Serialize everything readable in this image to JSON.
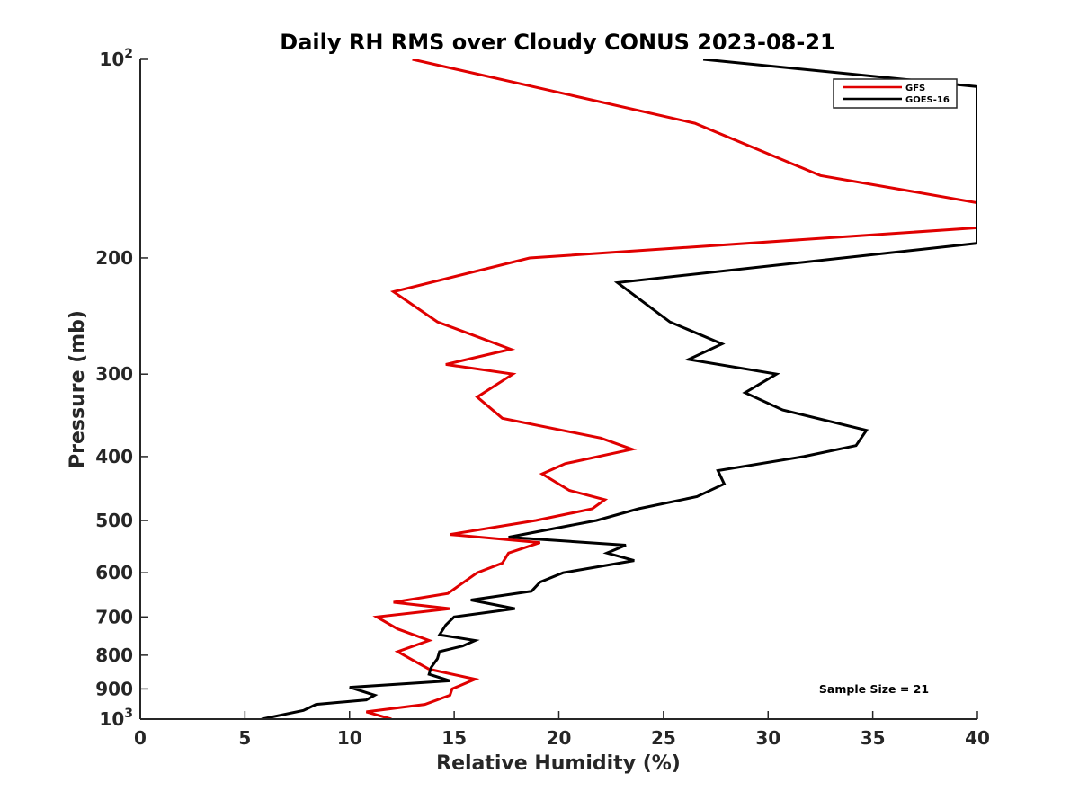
{
  "chart_data": {
    "type": "line",
    "title": "Daily RH RMS over Cloudy CONUS 2023-08-21",
    "xlabel": "Relative Humidity (%)",
    "ylabel": "Pressure (mb)",
    "xlim": [
      0,
      40
    ],
    "ylim": [
      100,
      1000
    ],
    "y_scale": "log",
    "y_reversed": true,
    "grid": false,
    "legend_position": "top-right",
    "x_ticks": [
      0,
      5,
      10,
      15,
      20,
      25,
      30,
      35,
      40
    ],
    "y_ticks": [
      {
        "value": 100,
        "base": "10",
        "exp": "2"
      },
      {
        "value": 200,
        "label": "200"
      },
      {
        "value": 300,
        "label": "300"
      },
      {
        "value": 400,
        "label": "400"
      },
      {
        "value": 500,
        "label": "500"
      },
      {
        "value": 600,
        "label": "600"
      },
      {
        "value": 700,
        "label": "700"
      },
      {
        "value": 800,
        "label": "800"
      },
      {
        "value": 900,
        "label": "900"
      },
      {
        "value": 1000,
        "base": "10",
        "exp": "3"
      }
    ],
    "annotation": "Sample Size = 21",
    "series": [
      {
        "name": "GFS",
        "color": "#e00000",
        "points": [
          [
            13.0,
            100
          ],
          [
            26.5,
            125
          ],
          [
            32.5,
            150
          ],
          [
            40.0,
            165
          ],
          [
            40.0,
            180
          ],
          [
            18.6,
            200
          ],
          [
            12.1,
            225
          ],
          [
            14.2,
            250
          ],
          [
            17.7,
            275
          ],
          [
            14.6,
            290
          ],
          [
            17.8,
            300
          ],
          [
            16.1,
            325
          ],
          [
            17.3,
            350
          ],
          [
            22.0,
            375
          ],
          [
            23.5,
            390
          ],
          [
            20.3,
            410
          ],
          [
            19.2,
            425
          ],
          [
            20.5,
            450
          ],
          [
            22.2,
            465
          ],
          [
            21.6,
            480
          ],
          [
            18.9,
            500
          ],
          [
            14.8,
            525
          ],
          [
            19.1,
            540
          ],
          [
            17.6,
            560
          ],
          [
            17.3,
            580
          ],
          [
            16.1,
            600
          ],
          [
            14.7,
            645
          ],
          [
            12.1,
            665
          ],
          [
            14.8,
            680
          ],
          [
            11.3,
            700
          ],
          [
            12.3,
            730
          ],
          [
            13.8,
            760
          ],
          [
            12.3,
            790
          ],
          [
            12.9,
            810
          ],
          [
            13.8,
            840
          ],
          [
            16.0,
            870
          ],
          [
            14.9,
            900
          ],
          [
            14.8,
            920
          ],
          [
            13.6,
            950
          ],
          [
            10.8,
            975
          ],
          [
            12.0,
            1000
          ]
        ]
      },
      {
        "name": "GOES-16",
        "color": "#000000",
        "points": [
          [
            26.9,
            100
          ],
          [
            40.0,
            110
          ],
          [
            40.0,
            190
          ],
          [
            22.8,
            218
          ],
          [
            25.3,
            250
          ],
          [
            27.8,
            270
          ],
          [
            26.2,
            285
          ],
          [
            30.4,
            300
          ],
          [
            28.9,
            320
          ],
          [
            30.7,
            340
          ],
          [
            34.7,
            365
          ],
          [
            34.2,
            385
          ],
          [
            31.7,
            400
          ],
          [
            27.6,
            420
          ],
          [
            27.9,
            440
          ],
          [
            26.6,
            460
          ],
          [
            23.8,
            480
          ],
          [
            21.8,
            500
          ],
          [
            17.6,
            530
          ],
          [
            23.2,
            545
          ],
          [
            22.3,
            560
          ],
          [
            23.6,
            575
          ],
          [
            20.2,
            600
          ],
          [
            19.1,
            620
          ],
          [
            18.7,
            640
          ],
          [
            15.8,
            660
          ],
          [
            17.9,
            680
          ],
          [
            15.0,
            700
          ],
          [
            14.6,
            720
          ],
          [
            14.3,
            745
          ],
          [
            16.0,
            760
          ],
          [
            15.4,
            775
          ],
          [
            14.3,
            790
          ],
          [
            14.2,
            810
          ],
          [
            13.9,
            835
          ],
          [
            13.8,
            855
          ],
          [
            14.8,
            875
          ],
          [
            10.0,
            895
          ],
          [
            11.2,
            920
          ],
          [
            10.8,
            935
          ],
          [
            8.4,
            950
          ],
          [
            8.1,
            960
          ],
          [
            7.8,
            970
          ],
          [
            5.8,
            1000
          ]
        ]
      }
    ]
  }
}
